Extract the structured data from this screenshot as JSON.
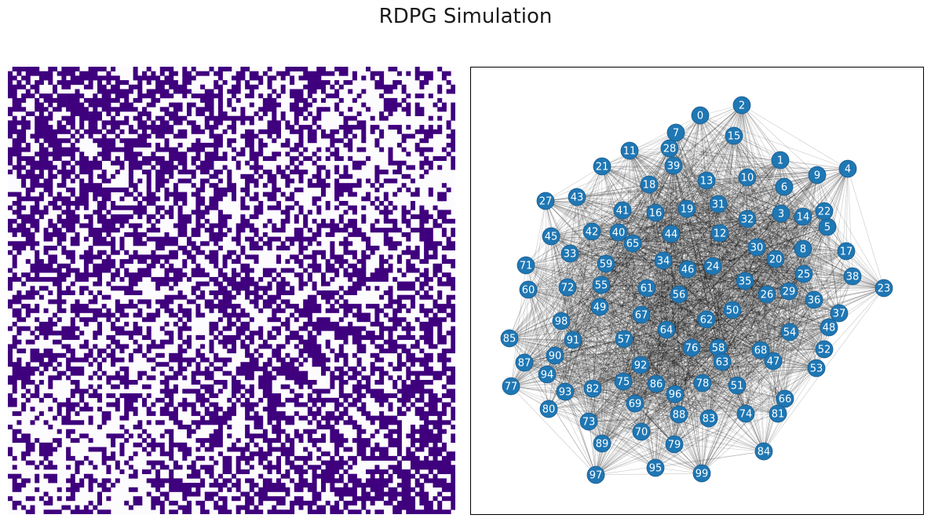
{
  "title": "RDPG Simulation",
  "colors": {
    "edge_present": "#3f007d",
    "edge_absent": "#fcfbfd",
    "node_fill": "#1f77b4",
    "node_label": "#ffffff",
    "graph_edge": "#000000"
  },
  "chart_data": [
    {
      "type": "heatmap",
      "description_of_values": "Adjacency matrix; rows/cols ordered by latent position",
      "n": 100,
      "values": "binary 0/1 adjacency, denser in top-left and bottom-right blocks",
      "xlabel": "",
      "ylabel": "",
      "grid": false
    },
    {
      "type": "network",
      "nodes": [
        0,
        1,
        2,
        3,
        4,
        5,
        6,
        7,
        8,
        9,
        10,
        11,
        12,
        13,
        14,
        15,
        16,
        17,
        18,
        19,
        20,
        21,
        22,
        23,
        24,
        25,
        26,
        27,
        28,
        29,
        30,
        31,
        32,
        33,
        34,
        35,
        36,
        37,
        38,
        39,
        40,
        41,
        42,
        43,
        44,
        45,
        46,
        47,
        48,
        49,
        50,
        51,
        52,
        53,
        54,
        55,
        56,
        57,
        58,
        59,
        60,
        61,
        62,
        63,
        64,
        65,
        66,
        67,
        68,
        69,
        70,
        71,
        72,
        73,
        74,
        75,
        76,
        77,
        78,
        79,
        80,
        81,
        82,
        83,
        84,
        85,
        86,
        87,
        88,
        89,
        90,
        91,
        92,
        93,
        94,
        95,
        96,
        97,
        98,
        99
      ],
      "layout": "force-directed",
      "grid": false
    }
  ]
}
